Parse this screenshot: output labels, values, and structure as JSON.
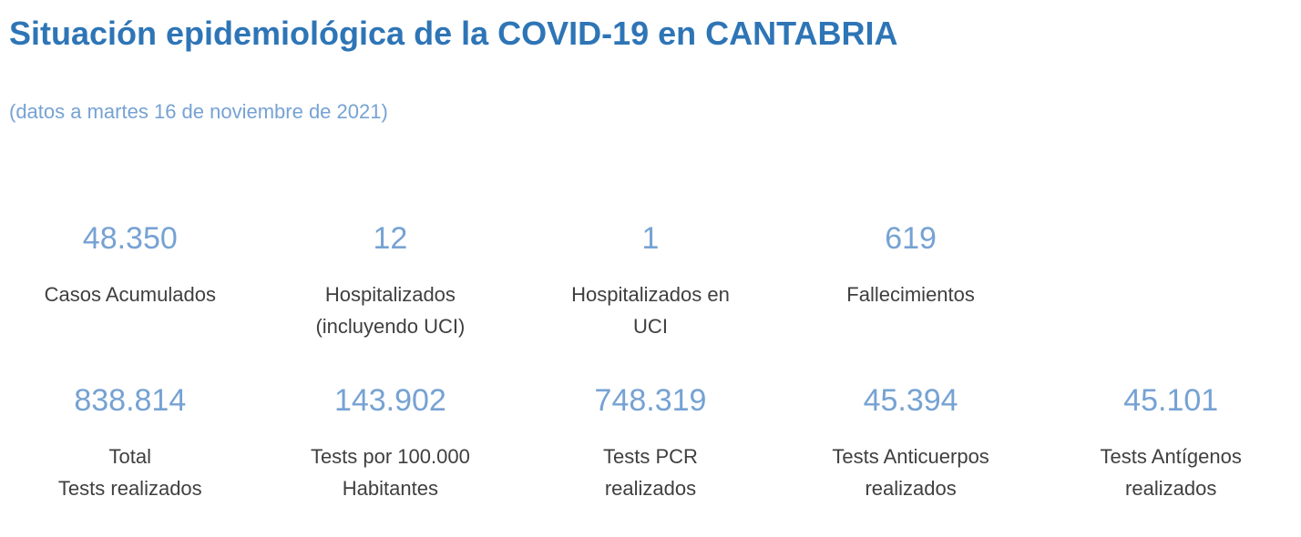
{
  "header": {
    "title": "Situación epidemiológica de la COVID-19 en CANTABRIA",
    "subtitle": "(datos a martes 16 de noviembre de 2021)"
  },
  "colors": {
    "title_blue": "#2E75B6",
    "value_blue": "#76A2D3",
    "label_gray": "#3F3F3F"
  },
  "rows": [
    {
      "items": [
        {
          "value": "48.350",
          "label_lines": [
            "Casos Acumulados"
          ]
        },
        {
          "value": "12",
          "label_lines": [
            "Hospitalizados",
            "(incluyendo UCI)"
          ]
        },
        {
          "value": "1",
          "label_lines": [
            "Hospitalizados en",
            "UCI"
          ]
        },
        {
          "value": "619",
          "label_lines": [
            "Fallecimientos"
          ]
        }
      ]
    },
    {
      "items": [
        {
          "value": "838.814",
          "label_lines": [
            "Total",
            "Tests realizados"
          ]
        },
        {
          "value": "143.902",
          "label_lines": [
            "Tests por 100.000",
            "Habitantes"
          ]
        },
        {
          "value": "748.319",
          "label_lines": [
            "Tests PCR",
            "realizados"
          ]
        },
        {
          "value": "45.394",
          "label_lines": [
            "Tests Anticuerpos",
            "realizados"
          ]
        },
        {
          "value": "45.101",
          "label_lines": [
            "Tests Antígenos",
            "realizados"
          ]
        }
      ]
    }
  ],
  "chart_data": {
    "type": "table",
    "title": "Situación epidemiológica de la COVID-19 en CANTABRIA",
    "subtitle": "(datos a martes 16 de noviembre de 2021)",
    "kpis": [
      {
        "label": "Casos Acumulados",
        "value": 48350
      },
      {
        "label": "Hospitalizados (incluyendo UCI)",
        "value": 12
      },
      {
        "label": "Hospitalizados en UCI",
        "value": 1
      },
      {
        "label": "Fallecimientos",
        "value": 619
      },
      {
        "label": "Total Tests realizados",
        "value": 838814
      },
      {
        "label": "Tests por 100.000 Habitantes",
        "value": 143902
      },
      {
        "label": "Tests PCR realizados",
        "value": 748319
      },
      {
        "label": "Tests Anticuerpos realizados",
        "value": 45394
      },
      {
        "label": "Tests Antígenos realizados",
        "value": 45101
      }
    ]
  }
}
